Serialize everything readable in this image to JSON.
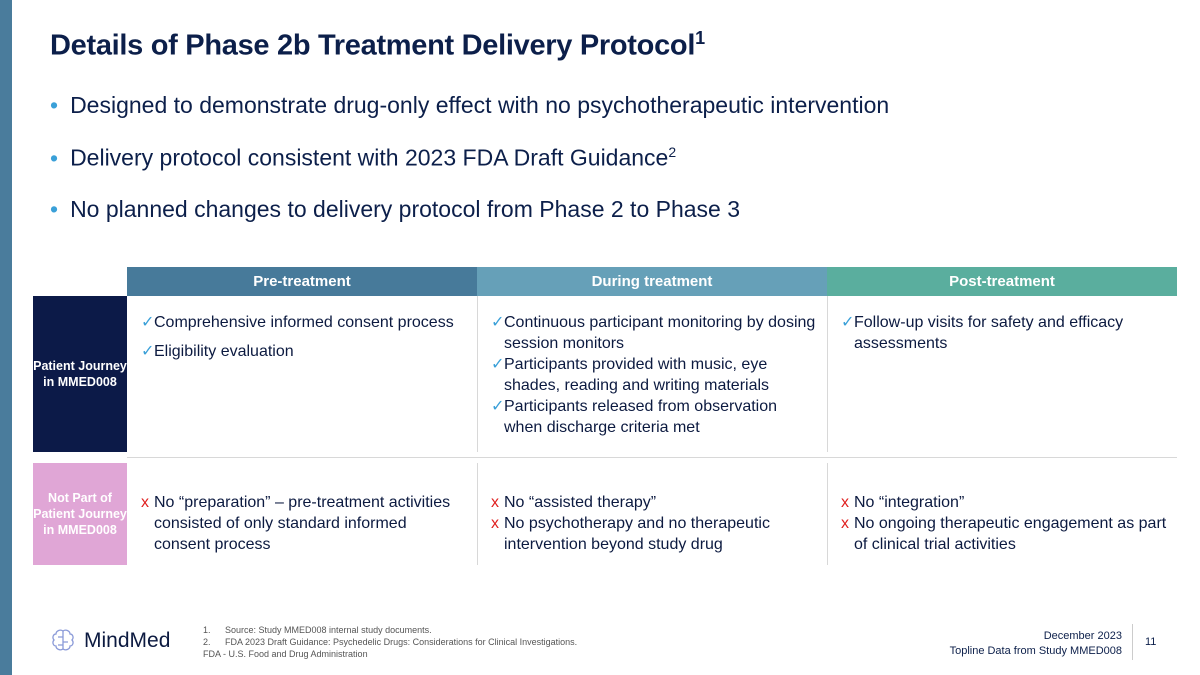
{
  "title": "Details of Phase 2b Treatment Delivery Protocol",
  "title_sup": "1",
  "bullets": [
    {
      "text": "Designed to demonstrate drug-only effect with no psychotherapeutic intervention",
      "sup": ""
    },
    {
      "text": "Delivery protocol consistent with 2023 FDA Draft Guidance",
      "sup": "2"
    },
    {
      "text": "No planned changes to delivery protocol from Phase 2 to Phase 3",
      "sup": ""
    }
  ],
  "columns": [
    {
      "label": "Pre-treatment",
      "color": "#477a9a"
    },
    {
      "label": "During treatment",
      "color": "#66a0b8"
    },
    {
      "label": "Post-treatment",
      "color": "#5aae9e"
    }
  ],
  "rows": [
    {
      "label": "Patient Journey in MMED008",
      "color": "#0c1a48",
      "mark": "✓",
      "cells": [
        [
          "Comprehensive informed consent process",
          "Eligibility evaluation"
        ],
        [
          "Continuous participant monitoring by dosing session monitors",
          "Participants provided with music, eye shades, reading and writing materials",
          "Participants released from observation when discharge criteria met"
        ],
        [
          "Follow-up visits for safety and efficacy assessments"
        ]
      ]
    },
    {
      "label": "Not Part of Patient Journey in MMED008",
      "color": "#e0a6d6",
      "mark": "x",
      "cells": [
        [
          "No “preparation” – pre-treatment activities consisted of only standard informed consent process"
        ],
        [
          "No “assisted therapy”",
          "No psychotherapy and no therapeutic intervention beyond study drug"
        ],
        [
          "No “integration”",
          "No ongoing therapeutic engagement as part of clinical trial activities"
        ]
      ]
    }
  ],
  "footnotes": [
    {
      "n": "1.",
      "text": "Source: Study MMED008 internal study documents."
    },
    {
      "n": "2.",
      "text": "FDA 2023 Draft Guidance: Psychedelic Drugs: Considerations for Clinical Investigations."
    }
  ],
  "abbrev": "FDA - U.S. Food and Drug Administration",
  "logo": "MindMed",
  "date": "December 2023",
  "subtitle": "Topline Data from Study MMED008",
  "page": "11"
}
